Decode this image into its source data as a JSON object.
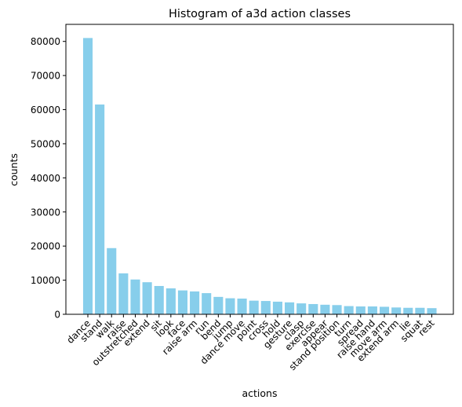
{
  "chart_data": {
    "type": "bar",
    "title": "Histogram of a3d action classes",
    "xlabel": "actions",
    "ylabel": "counts",
    "bar_color": "#87ceeb",
    "ylim": [
      0,
      85000
    ],
    "yticks": [
      0,
      10000,
      20000,
      30000,
      40000,
      50000,
      60000,
      70000,
      80000
    ],
    "grid": false,
    "categories": [
      "dance",
      "stand",
      "walk",
      "raise",
      "outstretched",
      "extend",
      "sit",
      "look",
      "face",
      "raise arm",
      "run",
      "bend",
      "jump",
      "dance move",
      "point",
      "cross",
      "hold",
      "gesture",
      "clasp",
      "exercise",
      "appear",
      "stand position",
      "turn",
      "spread",
      "raise hand",
      "move arm",
      "extend arm",
      "lie",
      "squat",
      "rest"
    ],
    "values": [
      81000,
      61500,
      19400,
      12000,
      10200,
      9400,
      8300,
      7600,
      7000,
      6700,
      6200,
      5100,
      4700,
      4600,
      4000,
      3900,
      3700,
      3500,
      3200,
      3000,
      2800,
      2700,
      2400,
      2300,
      2300,
      2200,
      2000,
      1900,
      1900,
      1800
    ]
  }
}
